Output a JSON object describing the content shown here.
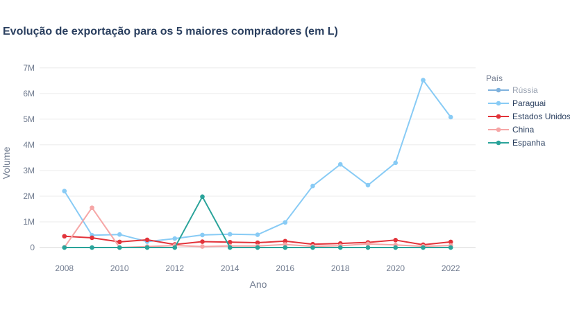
{
  "chart_data": {
    "type": "line",
    "title": "Evolução de exportação para os 5 maiores compradores (em L)",
    "xlabel": "Ano",
    "ylabel": "Volume",
    "legend_title": "País",
    "legend_position": "right",
    "ylim": [
      -350000,
      7400000
    ],
    "xlim": [
      2007.1,
      2022.9
    ],
    "y_ticks": [
      0,
      1000000,
      2000000,
      3000000,
      4000000,
      5000000,
      6000000,
      7000000
    ],
    "y_tick_labels": [
      "0",
      "1M",
      "2M",
      "3M",
      "4M",
      "5M",
      "6M",
      "7M"
    ],
    "x_ticks": [
      2008,
      2010,
      2012,
      2014,
      2016,
      2018,
      2020,
      2022
    ],
    "x_tick_labels": [
      "2008",
      "2010",
      "2012",
      "2014",
      "2016",
      "2018",
      "2020",
      "2022"
    ],
    "grid": true,
    "x": [
      2008,
      2009,
      2010,
      2011,
      2012,
      2013,
      2014,
      2015,
      2016,
      2017,
      2018,
      2019,
      2020,
      2021,
      2022
    ],
    "series": [
      {
        "name": "Rússia",
        "color": "#7fb2dd",
        "legend_muted": true,
        "values": [
          null,
          null,
          null,
          null,
          null,
          null,
          null,
          null,
          null,
          null,
          null,
          null,
          null,
          null,
          null
        ]
      },
      {
        "name": "Paraguai",
        "color": "#88cbf5",
        "values": [
          2200000,
          480000,
          510000,
          230000,
          350000,
          490000,
          520000,
          500000,
          980000,
          2400000,
          3240000,
          2430000,
          3300000,
          6520000,
          5080000
        ]
      },
      {
        "name": "Estados Unidos",
        "color": "#e2333a",
        "values": [
          440000,
          380000,
          220000,
          300000,
          120000,
          230000,
          210000,
          190000,
          250000,
          130000,
          160000,
          200000,
          290000,
          110000,
          220000
        ]
      },
      {
        "name": "China",
        "color": "#f6a6a6",
        "values": [
          10000,
          1550000,
          0,
          40000,
          80000,
          40000,
          60000,
          60000,
          120000,
          50000,
          70000,
          140000,
          100000,
          50000,
          80000
        ]
      },
      {
        "name": "Espanha",
        "color": "#2aa39a",
        "values": [
          0,
          0,
          0,
          0,
          0,
          1980000,
          0,
          0,
          0,
          0,
          0,
          0,
          0,
          0,
          0
        ]
      }
    ]
  }
}
